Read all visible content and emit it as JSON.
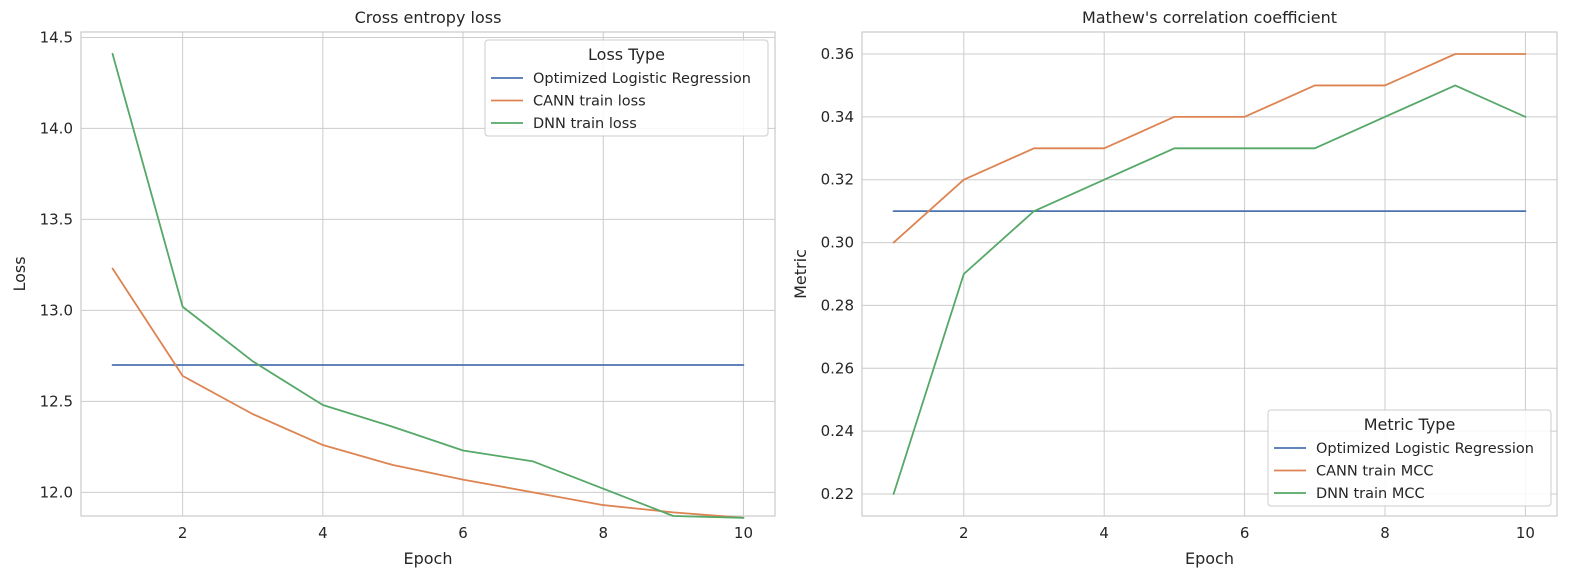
{
  "chart_data": [
    {
      "type": "line",
      "title": "Cross entropy loss",
      "xlabel": "Epoch",
      "ylabel": "Loss",
      "x": [
        1,
        2,
        3,
        4,
        5,
        6,
        7,
        8,
        9,
        10
      ],
      "xticks": [
        2,
        4,
        6,
        8,
        10
      ],
      "yticks": [
        12.0,
        12.5,
        13.0,
        13.5,
        14.0,
        14.5
      ],
      "ytick_labels": [
        "12.0",
        "12.5",
        "13.0",
        "13.5",
        "14.0",
        "14.5"
      ],
      "xlim": [
        0.55,
        10.45
      ],
      "ylim": [
        11.87,
        14.53
      ],
      "grid": true,
      "legend": {
        "title": "Loss Type",
        "placement": "top-right"
      },
      "series": [
        {
          "name": "Optimized Logistic Regression",
          "color": "#4c72b0",
          "values": [
            12.7,
            12.7,
            12.7,
            12.7,
            12.7,
            12.7,
            12.7,
            12.7,
            12.7,
            12.7
          ]
        },
        {
          "name": "CANN train loss",
          "color": "#dd8452",
          "values": [
            13.23,
            12.64,
            12.43,
            12.26,
            12.15,
            12.07,
            12.0,
            11.93,
            11.89,
            11.86
          ]
        },
        {
          "name": "DNN train loss",
          "color": "#55a868",
          "values": [
            14.41,
            13.02,
            12.72,
            12.48,
            12.36,
            12.23,
            12.17,
            12.02,
            11.87,
            11.86
          ]
        }
      ]
    },
    {
      "type": "line",
      "title": "Mathew's correlation coefficient",
      "xlabel": "Epoch",
      "ylabel": "Metric",
      "x": [
        1,
        2,
        3,
        4,
        5,
        6,
        7,
        8,
        9,
        10
      ],
      "xticks": [
        2,
        4,
        6,
        8,
        10
      ],
      "yticks": [
        0.22,
        0.24,
        0.26,
        0.28,
        0.3,
        0.32,
        0.34,
        0.36
      ],
      "ytick_labels": [
        "0.22",
        "0.24",
        "0.26",
        "0.28",
        "0.30",
        "0.32",
        "0.34",
        "0.36"
      ],
      "xlim": [
        0.55,
        10.45
      ],
      "ylim": [
        0.213,
        0.367
      ],
      "grid": true,
      "legend": {
        "title": "Metric Type",
        "placement": "bottom-right"
      },
      "series": [
        {
          "name": "Optimized Logistic Regression",
          "color": "#4c72b0",
          "values": [
            0.31,
            0.31,
            0.31,
            0.31,
            0.31,
            0.31,
            0.31,
            0.31,
            0.31,
            0.31
          ]
        },
        {
          "name": "CANN train MCC",
          "color": "#dd8452",
          "values": [
            0.3,
            0.32,
            0.33,
            0.33,
            0.34,
            0.34,
            0.35,
            0.35,
            0.36,
            0.36
          ]
        },
        {
          "name": "DNN train MCC",
          "color": "#55a868",
          "values": [
            0.22,
            0.29,
            0.31,
            0.32,
            0.33,
            0.33,
            0.33,
            0.34,
            0.35,
            0.34
          ]
        }
      ]
    }
  ]
}
